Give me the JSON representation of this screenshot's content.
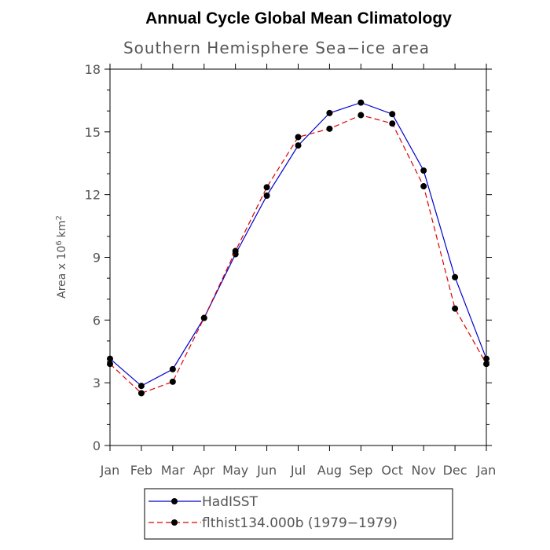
{
  "chart_data": {
    "type": "line",
    "title": "Annual Cycle Global Mean Climatology",
    "subtitle": "Southern Hemisphere Sea−ice area",
    "ylabel": "Area x 10",
    "ylabel_exp": "6",
    "ylabel_unit": "km",
    "ylabel_unit_exp": "2",
    "categories": [
      "Jan",
      "Feb",
      "Mar",
      "Apr",
      "May",
      "Jun",
      "Jul",
      "Aug",
      "Sep",
      "Oct",
      "Nov",
      "Dec",
      "Jan"
    ],
    "ylim": [
      0,
      18
    ],
    "yticks": [
      "0",
      "3",
      "6",
      "9",
      "12",
      "15",
      "18"
    ],
    "grid": false,
    "legend_position": "bottom",
    "series": [
      {
        "name": "HadISST",
        "color": "#0000cc",
        "dash": "solid",
        "values": [
          4.15,
          2.85,
          3.65,
          6.1,
          9.15,
          11.95,
          14.35,
          15.9,
          16.4,
          15.85,
          13.15,
          8.05,
          4.15
        ]
      },
      {
        "name": "flthist134.000b (1979−1979)",
        "color": "#dd0000",
        "dash": "dashed",
        "values": [
          3.9,
          2.5,
          3.05,
          6.1,
          9.3,
          12.35,
          14.75,
          15.15,
          15.8,
          15.4,
          12.4,
          6.55,
          3.9
        ]
      }
    ]
  }
}
